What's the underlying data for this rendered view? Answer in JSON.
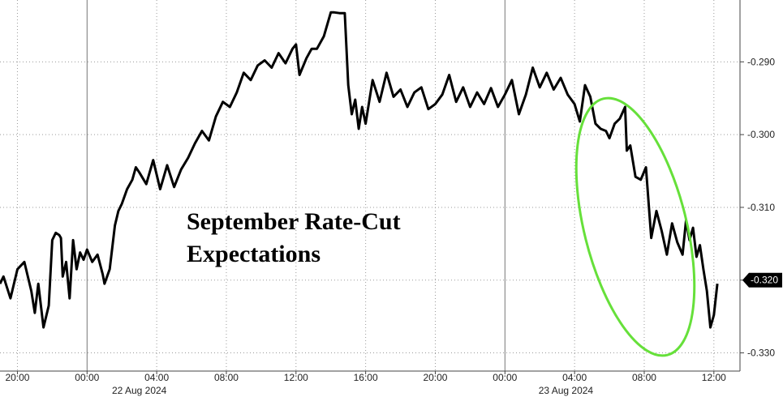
{
  "chart_data": {
    "type": "line",
    "title": "",
    "annotation_lines": [
      "September Rate-Cut",
      "Expectations"
    ],
    "xlabel": "",
    "ylabel": "",
    "x_tick_labels": [
      "20:00",
      "00:00",
      "04:00",
      "08:00",
      "12:00",
      "16:00",
      "20:00",
      "00:00",
      "04:00",
      "08:00",
      "12:00"
    ],
    "x_dates": [
      "22 Aug 2024",
      "23 Aug 2024"
    ],
    "y_ticks": [
      -0.29,
      -0.3,
      -0.31,
      -0.32,
      -0.33
    ],
    "y_tick_labels": [
      "-0.290",
      "-0.300",
      "-0.310",
      "-0.320",
      "-0.330"
    ],
    "ylim": [
      -0.3325,
      -0.2815
    ],
    "grid": true,
    "axis_side": "right",
    "last_value": -0.32,
    "last_value_label": "-0.320",
    "highlight": {
      "shape": "ellipse",
      "color": "#66e03a"
    },
    "series": [
      {
        "color": "#000000",
        "x_hours": [
          -5.0,
          -4.8,
          -4.4,
          -4.0,
          -3.6,
          -3.2,
          -3.0,
          -2.8,
          -2.5,
          -2.2,
          -2.0,
          -1.8,
          -1.6,
          -1.5,
          -1.4,
          -1.2,
          -1.0,
          -0.8,
          -0.6,
          -0.4,
          -0.2,
          0.0,
          0.3,
          0.6,
          0.9,
          1.0,
          1.3,
          1.6,
          1.8,
          2.0,
          2.3,
          2.6,
          2.8,
          3.0,
          3.4,
          3.8,
          4.2,
          4.6,
          5.0,
          5.4,
          5.8,
          6.2,
          6.6,
          7.0,
          7.4,
          7.8,
          8.2,
          8.6,
          9.0,
          9.4,
          9.8,
          10.2,
          10.6,
          11.0,
          11.4,
          11.8,
          12.0,
          12.2,
          12.6,
          12.9,
          13.0,
          13.2,
          13.6,
          14.0,
          14.2,
          14.5,
          14.8,
          15.0,
          15.2,
          15.4,
          15.6,
          15.8,
          16.0,
          16.4,
          16.8,
          17.2,
          17.6,
          18.0,
          18.4,
          18.8,
          19.2,
          19.6,
          20.0,
          20.4,
          20.8,
          21.2,
          21.6,
          22.0,
          22.4,
          22.8,
          23.2,
          23.6,
          24.0,
          24.4,
          24.8,
          25.2,
          25.6,
          26.0,
          26.4,
          26.8,
          27.2,
          27.6,
          28.0,
          28.3,
          28.6,
          28.9,
          29.2,
          29.5,
          29.8,
          30.0,
          30.3,
          30.6,
          30.9,
          31.0,
          31.2,
          31.5,
          31.8,
          32.1,
          32.4,
          32.7,
          33.0,
          33.3,
          33.6,
          33.9,
          34.2,
          34.4,
          34.6,
          34.8,
          35.0,
          35.2,
          35.4,
          35.6,
          35.8,
          36.0,
          36.2
        ],
        "values": [
          -0.3205,
          -0.3195,
          -0.3225,
          -0.3185,
          -0.3175,
          -0.3215,
          -0.3245,
          -0.3205,
          -0.3265,
          -0.3235,
          -0.3145,
          -0.3135,
          -0.3138,
          -0.3142,
          -0.3195,
          -0.3175,
          -0.3225,
          -0.3145,
          -0.3185,
          -0.3162,
          -0.3172,
          -0.3158,
          -0.3175,
          -0.3165,
          -0.3192,
          -0.3205,
          -0.3185,
          -0.3125,
          -0.3105,
          -0.3095,
          -0.3075,
          -0.3062,
          -0.3045,
          -0.3052,
          -0.3068,
          -0.3035,
          -0.3075,
          -0.3042,
          -0.3072,
          -0.3048,
          -0.3032,
          -0.3012,
          -0.2995,
          -0.3008,
          -0.2975,
          -0.2955,
          -0.2962,
          -0.2942,
          -0.2915,
          -0.2925,
          -0.2905,
          -0.2898,
          -0.2908,
          -0.2888,
          -0.2902,
          -0.2882,
          -0.2876,
          -0.2918,
          -0.2895,
          -0.2882,
          -0.2882,
          -0.2882,
          -0.2865,
          -0.2832,
          -0.2832,
          -0.2833,
          -0.2833,
          -0.2932,
          -0.2972,
          -0.2952,
          -0.2992,
          -0.2962,
          -0.2985,
          -0.2925,
          -0.2955,
          -0.2915,
          -0.2948,
          -0.2938,
          -0.2962,
          -0.2942,
          -0.2935,
          -0.2965,
          -0.2958,
          -0.2945,
          -0.2918,
          -0.2955,
          -0.2935,
          -0.2962,
          -0.2942,
          -0.2958,
          -0.2936,
          -0.2962,
          -0.2945,
          -0.2925,
          -0.2972,
          -0.2945,
          -0.2908,
          -0.2935,
          -0.2915,
          -0.2938,
          -0.2922,
          -0.2945,
          -0.2958,
          -0.2982,
          -0.2932,
          -0.2948,
          -0.2985,
          -0.2992,
          -0.2995,
          -0.3005,
          -0.2985,
          -0.2978,
          -0.2962,
          -0.3022,
          -0.3015,
          -0.3058,
          -0.3062,
          -0.3045,
          -0.3142,
          -0.3105,
          -0.3132,
          -0.3165,
          -0.3122,
          -0.3148,
          -0.3165,
          -0.3118,
          -0.3145,
          -0.3128,
          -0.3168,
          -0.3152,
          -0.3185,
          -0.3215,
          -0.3265,
          -0.3248,
          -0.3205
        ]
      }
    ]
  }
}
